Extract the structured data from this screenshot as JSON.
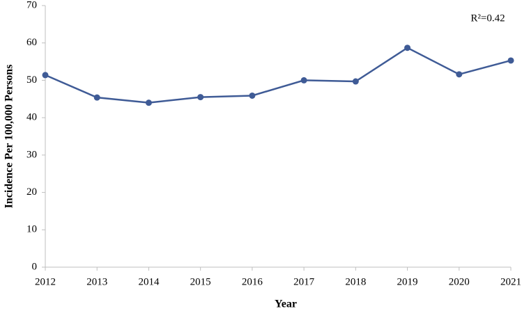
{
  "chart_data": {
    "type": "line",
    "x": [
      2012,
      2013,
      2014,
      2015,
      2016,
      2017,
      2018,
      2019,
      2020,
      2021
    ],
    "series": [
      {
        "name": "Incidence",
        "color": "#3f5b96",
        "values": [
          51.4,
          45.4,
          44.0,
          45.5,
          45.9,
          50.0,
          49.7,
          58.7,
          51.6,
          55.3
        ]
      }
    ],
    "xlim": [
      2012,
      2021
    ],
    "xticks": [
      2012,
      2013,
      2014,
      2015,
      2016,
      2017,
      2018,
      2019,
      2020,
      2021
    ],
    "ylim": [
      0,
      70
    ],
    "yticks": [
      0,
      10,
      20,
      30,
      40,
      50,
      60,
      70
    ],
    "x_label": "Year",
    "y_label": "Incidence Per 100,000 Persons",
    "annotation": "R²=0.42",
    "grid": false
  }
}
